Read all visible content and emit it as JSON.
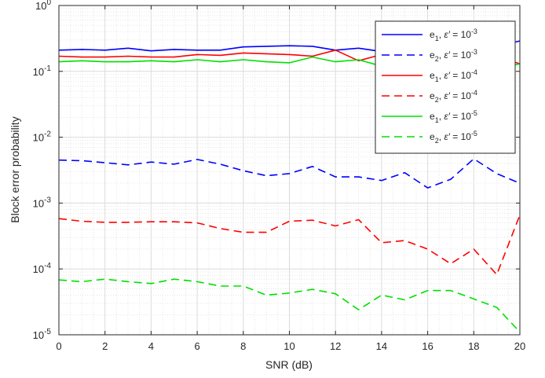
{
  "chart_data": {
    "type": "line",
    "xlabel": "SNR (dB)",
    "ylabel": "Block error probability",
    "xlim": [
      0,
      20
    ],
    "ylim": [
      1e-05,
      1
    ],
    "yscale": "log",
    "xticks": [
      "0",
      "2",
      "4",
      "6",
      "8",
      "10",
      "12",
      "14",
      "16",
      "18",
      "20"
    ],
    "yticks": [
      {
        "base": "10",
        "exp": "-5"
      },
      {
        "base": "10",
        "exp": "-4"
      },
      {
        "base": "10",
        "exp": "-3"
      },
      {
        "base": "10",
        "exp": "-2"
      },
      {
        "base": "10",
        "exp": "-1"
      },
      {
        "base": "10",
        "exp": "0"
      }
    ],
    "grid": true,
    "legend_position": "top-right",
    "x": [
      0,
      1,
      2,
      3,
      4,
      5,
      6,
      7,
      8,
      9,
      10,
      11,
      12,
      13,
      14,
      15,
      16,
      17,
      18,
      19,
      20
    ],
    "series": [
      {
        "legend": {
          "sym": "e",
          "sub": "1",
          "mid": ", ",
          "eps": "ε′",
          "eq": " = 10",
          "exp": "-3"
        },
        "color": "#0000ff",
        "dash": "solid",
        "values": [
          0.21,
          0.215,
          0.21,
          0.225,
          0.205,
          0.215,
          0.21,
          0.21,
          0.235,
          0.24,
          0.245,
          0.24,
          0.21,
          0.225,
          0.2,
          0.21,
          0.2,
          0.195,
          0.2,
          0.24,
          0.29
        ]
      },
      {
        "legend": {
          "sym": "e",
          "sub": "2",
          "mid": ", ",
          "eps": "ε′",
          "eq": " = 10",
          "exp": "-3"
        },
        "color": "#0000ff",
        "dash": "dashed",
        "values": [
          0.0045,
          0.0044,
          0.0041,
          0.0038,
          0.0042,
          0.0039,
          0.0046,
          0.0039,
          0.0031,
          0.0026,
          0.0028,
          0.0036,
          0.0025,
          0.0025,
          0.0022,
          0.0029,
          0.0017,
          0.0023,
          0.0047,
          0.0028,
          0.002
        ]
      },
      {
        "legend": {
          "sym": "e",
          "sub": "1",
          "mid": ", ",
          "eps": "ε′",
          "eq": " = 10",
          "exp": "-4"
        },
        "color": "#ff0000",
        "dash": "solid",
        "values": [
          0.17,
          0.165,
          0.165,
          0.17,
          0.165,
          0.165,
          0.18,
          0.175,
          0.19,
          0.185,
          0.18,
          0.17,
          0.21,
          0.145,
          0.18,
          0.17,
          0.16,
          0.17,
          0.165,
          0.17,
          0.13
        ]
      },
      {
        "legend": {
          "sym": "e",
          "sub": "2",
          "mid": ", ",
          "eps": "ε′",
          "eq": " = 10",
          "exp": "-4"
        },
        "color": "#ff0000",
        "dash": "dashed",
        "values": [
          0.00058,
          0.00053,
          0.00051,
          0.00051,
          0.00052,
          0.00052,
          0.0005,
          0.00041,
          0.00036,
          0.00036,
          0.00053,
          0.00055,
          0.00045,
          0.00056,
          0.00025,
          0.00027,
          0.0002,
          0.00012,
          0.0002,
          8.2e-05,
          0.00066
        ]
      },
      {
        "legend": {
          "sym": "e",
          "sub": "1",
          "mid": ", ",
          "eps": "ε′",
          "eq": " = 10",
          "exp": "-5"
        },
        "color": "#00e000",
        "dash": "solid",
        "values": [
          0.14,
          0.145,
          0.14,
          0.14,
          0.145,
          0.14,
          0.15,
          0.14,
          0.15,
          0.14,
          0.135,
          0.165,
          0.14,
          0.15,
          0.12,
          0.145,
          0.14,
          0.13,
          0.14,
          0.11,
          0.13
        ]
      },
      {
        "legend": {
          "sym": "e",
          "sub": "2",
          "mid": ", ",
          "eps": "ε′",
          "eq": " = 10",
          "exp": "-5"
        },
        "color": "#00e000",
        "dash": "dashed",
        "values": [
          6.8e-05,
          6.4e-05,
          7e-05,
          6.4e-05,
          6e-05,
          7e-05,
          6.4e-05,
          5.5e-05,
          5.5e-05,
          4e-05,
          4.3e-05,
          4.9e-05,
          4.2e-05,
          2.4e-05,
          4e-05,
          3.4e-05,
          4.7e-05,
          4.7e-05,
          3.5e-05,
          2.6e-05,
          1.1e-05
        ]
      }
    ]
  }
}
